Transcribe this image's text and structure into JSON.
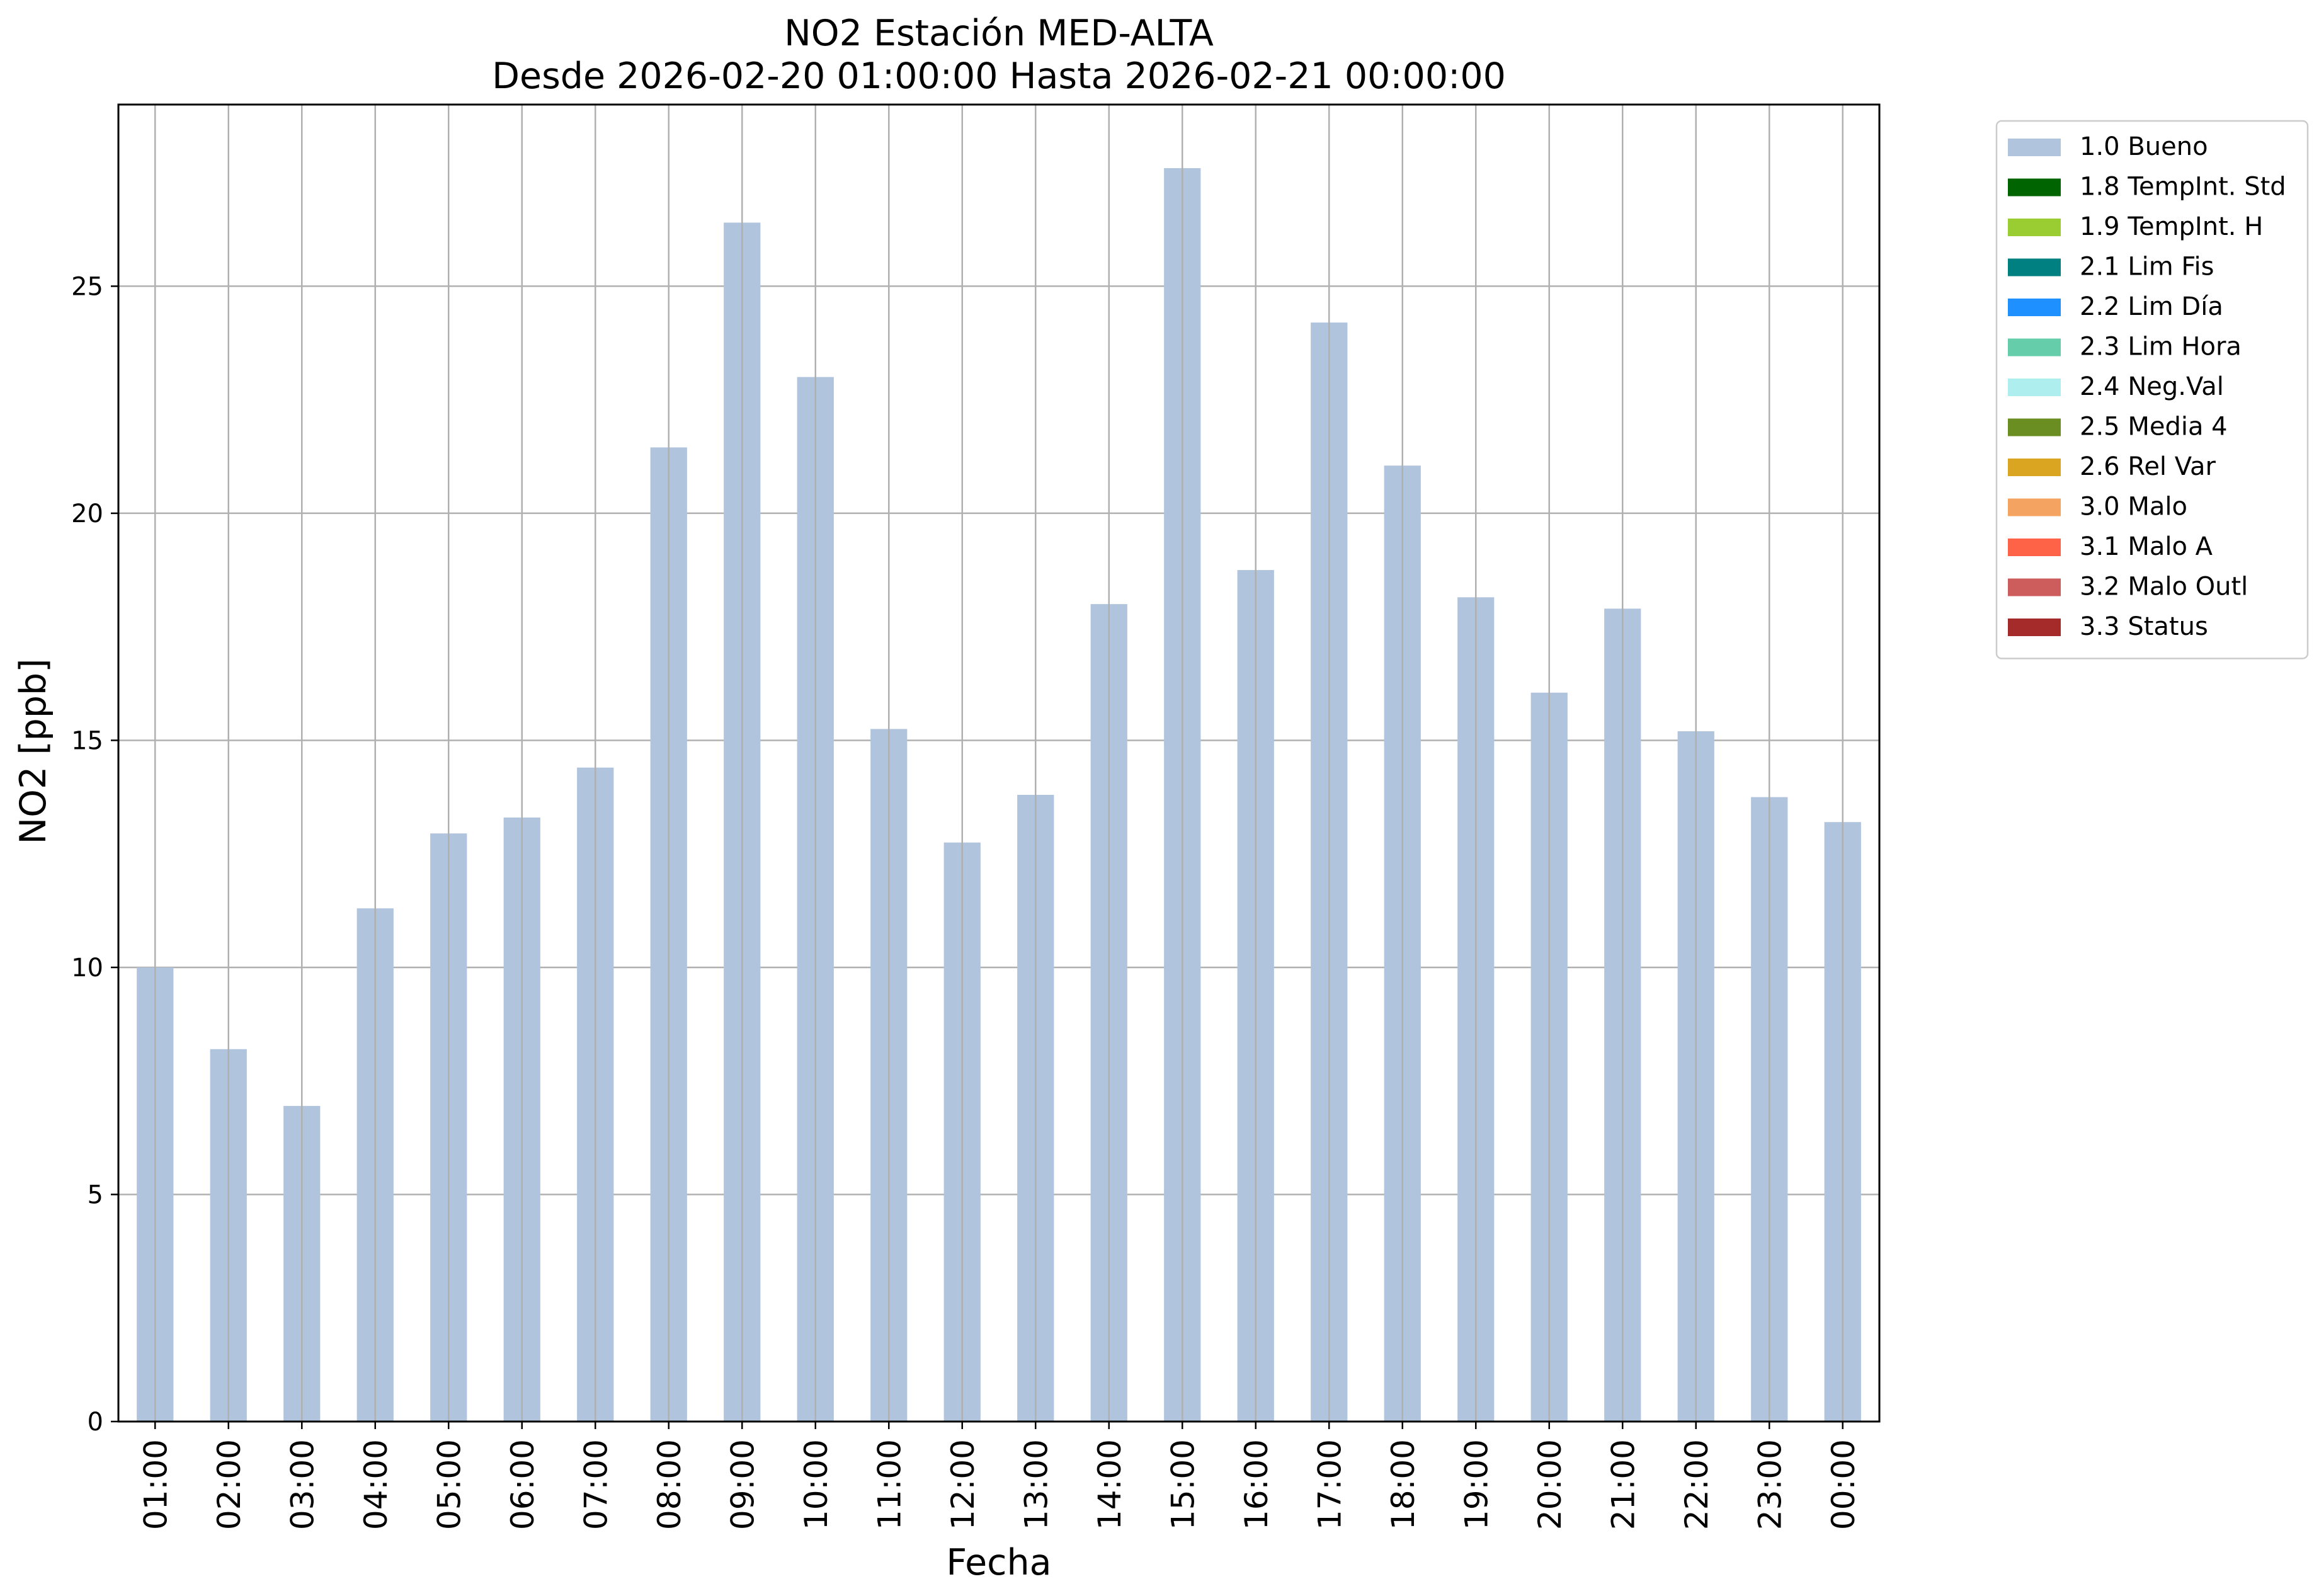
{
  "chart_data": {
    "type": "bar",
    "title": "NO2 Estación MED-ALTA",
    "subtitle": "Desde 2026-02-20 01:00:00 Hasta 2026-02-21 00:00:00",
    "xlabel": "Fecha",
    "ylabel": "NO2 [ppb]",
    "ylim": [
      0,
      29
    ],
    "yticks": [
      0,
      5,
      10,
      15,
      20,
      25
    ],
    "grid": true,
    "legend_position": "outside-top-right",
    "categories": [
      "01:00",
      "02:00",
      "03:00",
      "04:00",
      "05:00",
      "06:00",
      "07:00",
      "08:00",
      "09:00",
      "10:00",
      "11:00",
      "12:00",
      "13:00",
      "14:00",
      "15:00",
      "16:00",
      "17:00",
      "18:00",
      "19:00",
      "20:00",
      "21:00",
      "22:00",
      "23:00",
      "00:00"
    ],
    "series": [
      {
        "name": "1.0 Bueno",
        "color": "#b0c4de",
        "values": [
          10.0,
          8.2,
          6.95,
          11.3,
          12.95,
          13.3,
          14.4,
          21.45,
          26.4,
          23.0,
          15.25,
          12.75,
          13.8,
          18.0,
          27.6,
          18.75,
          24.2,
          21.05,
          18.15,
          16.05,
          17.9,
          15.2,
          13.75,
          13.2
        ]
      }
    ],
    "legend": [
      {
        "label": "1.0 Bueno",
        "color": "#b0c4de"
      },
      {
        "label": "1.8 TempInt. Std",
        "color": "#006400"
      },
      {
        "label": "1.9 TempInt. H",
        "color": "#9acd32"
      },
      {
        "label": "2.1 Lim Fis",
        "color": "#008080"
      },
      {
        "label": "2.2 Lim Día",
        "color": "#1e90ff"
      },
      {
        "label": "2.3 Lim Hora",
        "color": "#66cdaa"
      },
      {
        "label": "2.4 Neg.Val",
        "color": "#afeeee"
      },
      {
        "label": "2.5 Media 4",
        "color": "#6b8e23"
      },
      {
        "label": "2.6 Rel Var",
        "color": "#daa520"
      },
      {
        "label": "3.0 Malo",
        "color": "#f4a460"
      },
      {
        "label": "3.1 Malo A",
        "color": "#ff6347"
      },
      {
        "label": "3.2 Malo Outl",
        "color": "#cd5c5c"
      },
      {
        "label": "3.3 Status",
        "color": "#a52a2a"
      }
    ]
  }
}
